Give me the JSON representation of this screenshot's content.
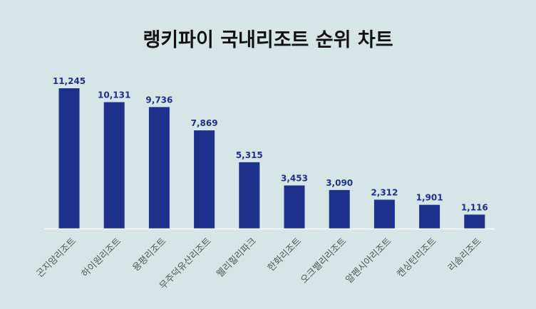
{
  "chart_data": {
    "type": "bar",
    "title": "랭키파이 국내리조트 순위 차트",
    "categories": [
      "곤지암리조트",
      "하이원리조트",
      "용평리조트",
      "무주덕유산리조트",
      "웰리힐리파크",
      "한화리조트",
      "오크밸리리조트",
      "알펜시아리조트",
      "켄싱턴리조트",
      "리솜리조트"
    ],
    "values": [
      11245,
      10131,
      9736,
      7869,
      5315,
      3453,
      3090,
      2312,
      1901,
      1116
    ],
    "value_labels": [
      "11,245",
      "10,131",
      "9,736",
      "7,869",
      "5,315",
      "3,453",
      "3,090",
      "2,312",
      "1,901",
      "1,116"
    ],
    "xlabel": "",
    "ylabel": "",
    "ylim": [
      0,
      11245
    ],
    "grid": false,
    "legend": "none",
    "colors": {
      "bar": "#1f2f8c",
      "value_label": "#1f2f8c",
      "tick_label": "#555555",
      "baseline": "#ffffff",
      "background": "#d6e5e5",
      "title": "#111111"
    }
  }
}
